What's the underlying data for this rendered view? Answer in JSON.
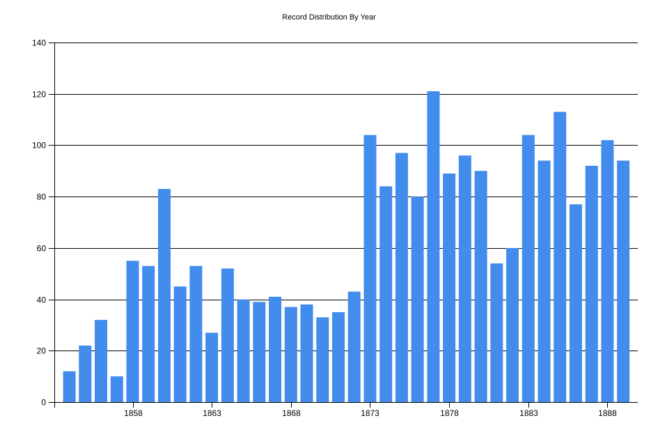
{
  "chart_data": {
    "type": "bar",
    "title": "Record Distribution By Year",
    "xlabel": "",
    "ylabel": "",
    "ylim": [
      0,
      140
    ],
    "yticks": [
      0,
      20,
      40,
      60,
      80,
      100,
      120,
      140
    ],
    "xticks": [
      1858,
      1863,
      1868,
      1873,
      1878,
      1883,
      1888
    ],
    "grid": "horizontal",
    "legend": "none",
    "bar_color": "#428CEE",
    "categories": [
      1854,
      1855,
      1856,
      1857,
      1858,
      1859,
      1860,
      1861,
      1862,
      1863,
      1864,
      1865,
      1866,
      1867,
      1868,
      1869,
      1870,
      1871,
      1872,
      1873,
      1874,
      1875,
      1876,
      1877,
      1878,
      1879,
      1880,
      1881,
      1882,
      1883,
      1884,
      1885,
      1886,
      1887,
      1888,
      1889
    ],
    "values": [
      12,
      22,
      32,
      10,
      55,
      53,
      83,
      45,
      53,
      27,
      52,
      40,
      39,
      41,
      37,
      38,
      33,
      35,
      43,
      104,
      84,
      97,
      80,
      121,
      89,
      96,
      90,
      54,
      60,
      104,
      94,
      113,
      77,
      92,
      102,
      94
    ]
  }
}
